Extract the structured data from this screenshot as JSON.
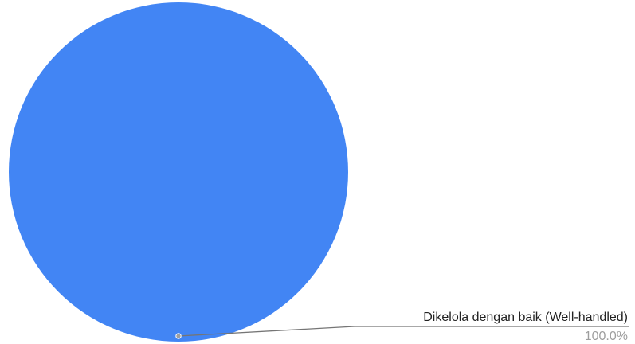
{
  "chart_data": {
    "type": "pie",
    "slices": [
      {
        "label": "Dikelola dengan baik (Well-handled)",
        "value": 100.0,
        "percent_label": "100.0%",
        "color": "#4285f4"
      }
    ],
    "legend": "none",
    "label_color": "#222222",
    "percent_color": "#9e9e9e",
    "leader_color": "#757575"
  }
}
